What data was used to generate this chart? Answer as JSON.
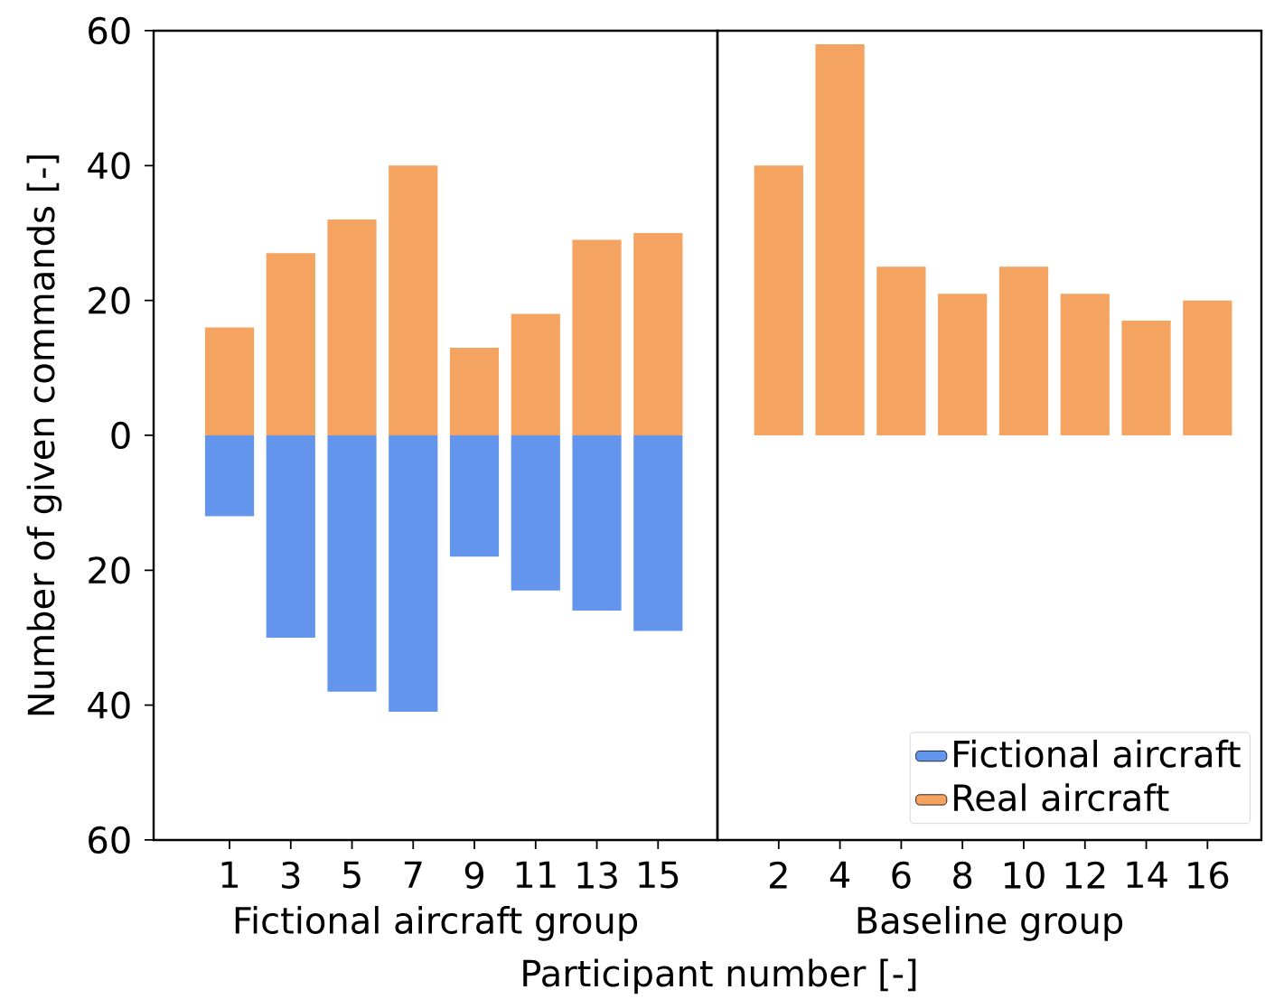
{
  "chart_data": [
    {
      "type": "bar",
      "stacked": true,
      "xlabel": "Fictional aircraft group",
      "ylabel": "Number of given commands [-]",
      "categories": [
        "1",
        "3",
        "5",
        "7",
        "9",
        "11",
        "13",
        "15"
      ],
      "series": [
        {
          "color": "#6495ed",
          "values": [
            -12,
            -30,
            -38,
            -41,
            -18,
            -23,
            -26,
            -29
          ]
        },
        {
          "color": "#f4a460",
          "values": [
            16,
            27,
            32,
            40,
            13,
            18,
            29,
            30
          ]
        }
      ],
      "ylim": [
        -60,
        60
      ],
      "yticks": [
        {
          "value": -60,
          "label": "60"
        },
        {
          "value": -40,
          "label": "40"
        },
        {
          "value": -20,
          "label": "20"
        },
        0,
        20,
        40,
        60
      ],
      "annotations": [
        "Participant number [-]"
      ]
    },
    {
      "type": "bar",
      "stacked": true,
      "xlabel": "Baseline group",
      "categories": [
        "2",
        "4",
        "6",
        "8",
        "10",
        "12",
        "14",
        "16"
      ],
      "series": [
        {
          "name": "Fictional aircraft",
          "color": "#6495ed",
          "values": [
            null,
            null,
            null,
            null,
            null,
            null,
            null,
            null
          ]
        },
        {
          "name": "Real aircraft",
          "color": "#f4a460",
          "values": [
            40,
            58,
            25,
            21,
            25,
            21,
            17,
            20
          ]
        }
      ],
      "ylim": [
        -60,
        60
      ],
      "tick_labels": "x",
      "legend": "bottom right"
    }
  ]
}
